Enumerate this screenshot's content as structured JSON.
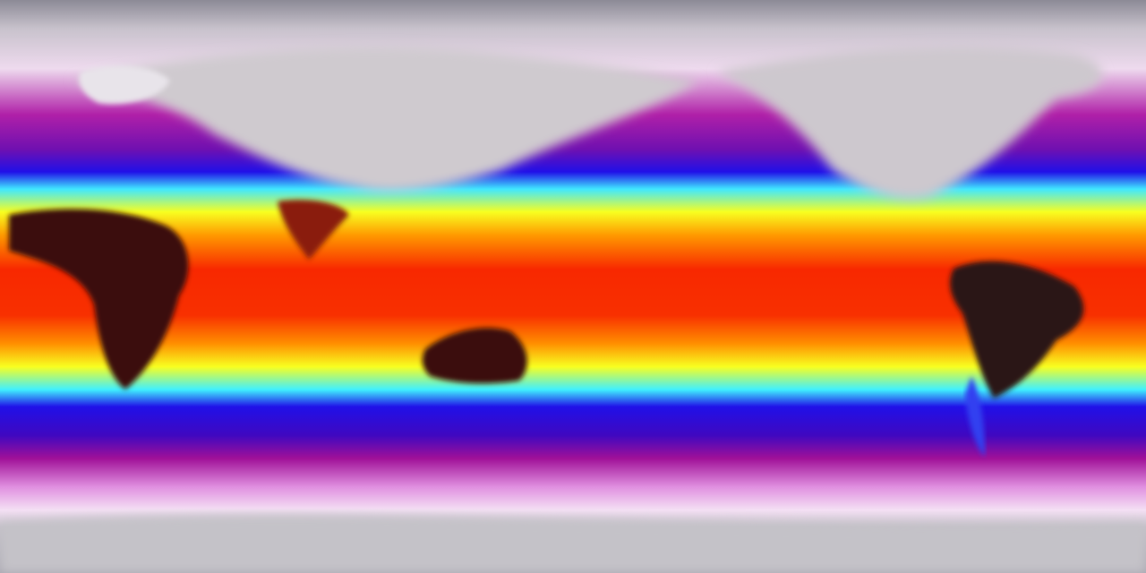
{
  "map": {
    "projection": "equirectangular",
    "colors": {
      "polar_gray": "#8c8a96",
      "cold_light": "#f2d8f0",
      "cold_magenta": "#a0109a",
      "cool_blue": "#1a10e0",
      "mild_cyan": "#40f0ff",
      "warm_yellow": "#ffff10",
      "hot_orange": "#ff7a00",
      "hot_red": "#f01a00",
      "hottest_dark": "#2a1010",
      "land_gray": "#c8c4c8"
    }
  }
}
